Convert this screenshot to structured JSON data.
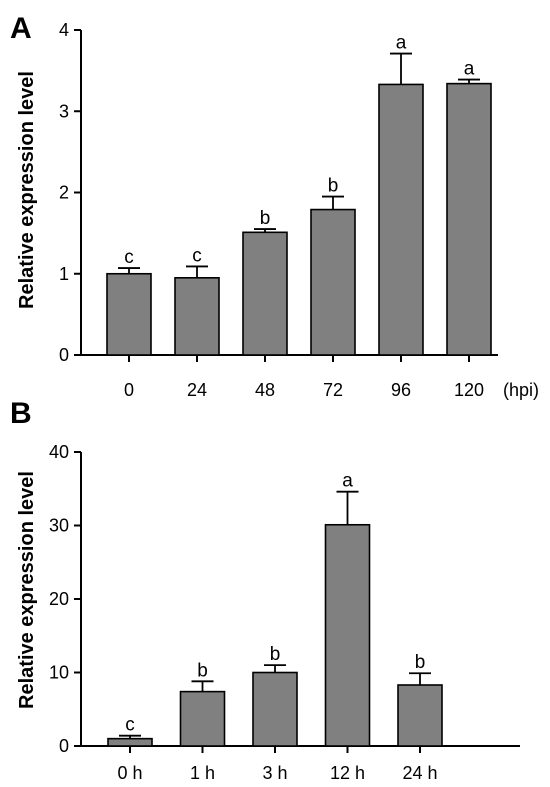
{
  "chart_data": [
    {
      "panel_label": "A",
      "type": "bar",
      "ylabel": "Relative expression level",
      "xunit": "(hpi)",
      "ylim": [
        0,
        4
      ],
      "yticks": [
        "0",
        "1",
        "2",
        "3",
        "4"
      ],
      "categories": [
        "0",
        "24",
        "48",
        "72",
        "96",
        "120"
      ],
      "values": [
        1.0,
        0.95,
        1.51,
        1.79,
        3.33,
        3.34
      ],
      "errors": [
        0.07,
        0.14,
        0.04,
        0.16,
        0.38,
        0.05
      ],
      "significance": [
        "c",
        "c",
        "b",
        "b",
        "a",
        "a"
      ]
    },
    {
      "panel_label": "B",
      "type": "bar",
      "ylabel": "Relative expression level",
      "xunit": "",
      "ylim": [
        0,
        40
      ],
      "yticks": [
        "0",
        "10",
        "20",
        "30",
        "40"
      ],
      "categories": [
        "0 h",
        "1 h",
        "3 h",
        "12 h",
        "24 h"
      ],
      "values": [
        1.0,
        7.4,
        10.0,
        30.1,
        8.3
      ],
      "errors": [
        0.4,
        1.4,
        1.0,
        4.5,
        1.6
      ],
      "significance": [
        "c",
        "b",
        "b",
        "a",
        "b"
      ]
    }
  ]
}
